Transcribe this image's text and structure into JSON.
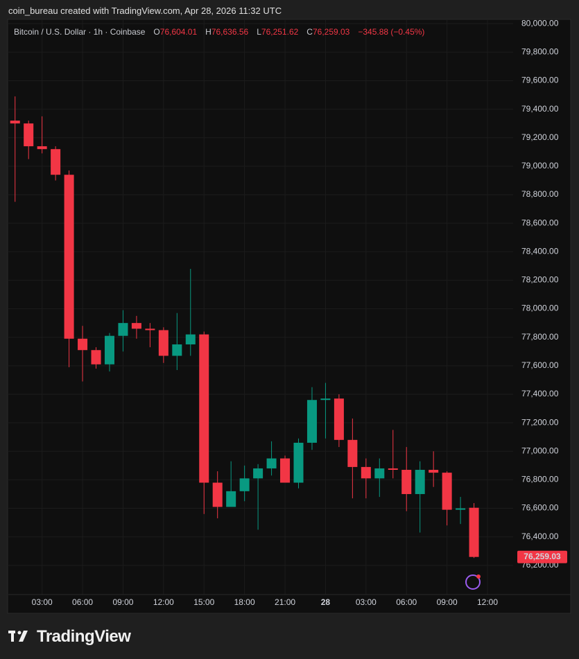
{
  "chart_data": {
    "type": "candlestick",
    "caption": "coin_bureau created with TradingView.com, Apr 28, 2026 11:32 UTC",
    "symbol": "Bitcoin / U.S. Dollar · 1h · Coinbase",
    "ohlc_fields": [
      {
        "key": "O",
        "label": "76,604.01"
      },
      {
        "key": "H",
        "label": "76,636.56"
      },
      {
        "key": "L",
        "label": "76,251.62"
      },
      {
        "key": "C",
        "label": "76,259.03"
      }
    ],
    "change_label": "−345.88 (−0.45%)",
    "up_color": "#089981",
    "down_color": "#f23645",
    "grid": true,
    "x": [
      1,
      2,
      3,
      4,
      5,
      6,
      7,
      8,
      9,
      10,
      11,
      12,
      13,
      14,
      15,
      16,
      17,
      18,
      19,
      20,
      21,
      22,
      23,
      24,
      25,
      26,
      27,
      28,
      29,
      30,
      31,
      32,
      33,
      34,
      35
    ],
    "open": [
      79320,
      79300,
      79140,
      79120,
      78940,
      77790,
      77710,
      77610,
      77810,
      77900,
      77860,
      77850,
      77670,
      77750,
      77820,
      76780,
      76610,
      76720,
      76810,
      76880,
      76950,
      76780,
      77060,
      77360,
      77370,
      77080,
      76890,
      76810,
      76880,
      76870,
      76700,
      76870,
      76850,
      76590,
      76604.01
    ],
    "high": [
      79490,
      79320,
      79350,
      79140,
      78970,
      77880,
      77730,
      77830,
      77990,
      77950,
      77900,
      77870,
      77970,
      78280,
      77840,
      76860,
      76930,
      76900,
      76910,
      77070,
      76970,
      77090,
      77450,
      77480,
      77400,
      77230,
      76950,
      76950,
      77150,
      77030,
      76930,
      77000,
      76860,
      76680,
      76636.56
    ],
    "low": [
      78750,
      79050,
      79090,
      78900,
      77590,
      77490,
      77580,
      77560,
      77700,
      77790,
      77730,
      77620,
      77570,
      77670,
      76560,
      76530,
      76610,
      76650,
      76450,
      76830,
      76780,
      76740,
      77010,
      77090,
      77030,
      76670,
      76670,
      76680,
      76810,
      76580,
      76430,
      76750,
      76480,
      76490,
      76251.62
    ],
    "close": [
      79300,
      79140,
      79120,
      78940,
      77790,
      77710,
      77610,
      77810,
      77900,
      77860,
      77850,
      77670,
      77750,
      77820,
      76780,
      76610,
      76720,
      76810,
      76880,
      76950,
      76780,
      77060,
      77360,
      77370,
      77080,
      76890,
      76810,
      76880,
      76870,
      76700,
      76870,
      76850,
      76590,
      76600,
      76259.03
    ],
    "last_price": {
      "value": 76259.03,
      "label": "76,259.03"
    },
    "xlim": [
      0.5,
      37.9
    ],
    "xticks": [
      {
        "value": 3,
        "label": "03:00"
      },
      {
        "value": 6,
        "label": "06:00"
      },
      {
        "value": 9,
        "label": "09:00"
      },
      {
        "value": 12,
        "label": "12:00"
      },
      {
        "value": 15,
        "label": "15:00"
      },
      {
        "value": 18,
        "label": "18:00"
      },
      {
        "value": 21,
        "label": "21:00"
      },
      {
        "value": 24,
        "label": "28"
      },
      {
        "value": 27,
        "label": "03:00"
      },
      {
        "value": 30,
        "label": "06:00"
      },
      {
        "value": 33,
        "label": "09:00"
      },
      {
        "value": 36,
        "label": "12:00"
      }
    ],
    "ylim": [
      75995,
      80030
    ],
    "yticks": [
      {
        "value": 76200,
        "label": "76,200.00"
      },
      {
        "value": 76400,
        "label": "76,400.00"
      },
      {
        "value": 76600,
        "label": "76,600.00"
      },
      {
        "value": 76800,
        "label": "76,800.00"
      },
      {
        "value": 77000,
        "label": "77,000.00"
      },
      {
        "value": 77200,
        "label": "77,200.00"
      },
      {
        "value": 77400,
        "label": "77,400.00"
      },
      {
        "value": 77600,
        "label": "77,600.00"
      },
      {
        "value": 77800,
        "label": "77,800.00"
      },
      {
        "value": 78000,
        "label": "78,000.00"
      },
      {
        "value": 78200,
        "label": "78,200.00"
      },
      {
        "value": 78400,
        "label": "78,400.00"
      },
      {
        "value": 78600,
        "label": "78,600.00"
      },
      {
        "value": 78800,
        "label": "78,800.00"
      },
      {
        "value": 79000,
        "label": "79,000.00"
      },
      {
        "value": 79200,
        "label": "79,200.00"
      },
      {
        "value": 79400,
        "label": "79,400.00"
      },
      {
        "value": 79600,
        "label": "79,600.00"
      },
      {
        "value": 79800,
        "label": "79,800.00"
      },
      {
        "value": 80000,
        "label": "80,000.00"
      }
    ],
    "brand": "TradingView"
  }
}
